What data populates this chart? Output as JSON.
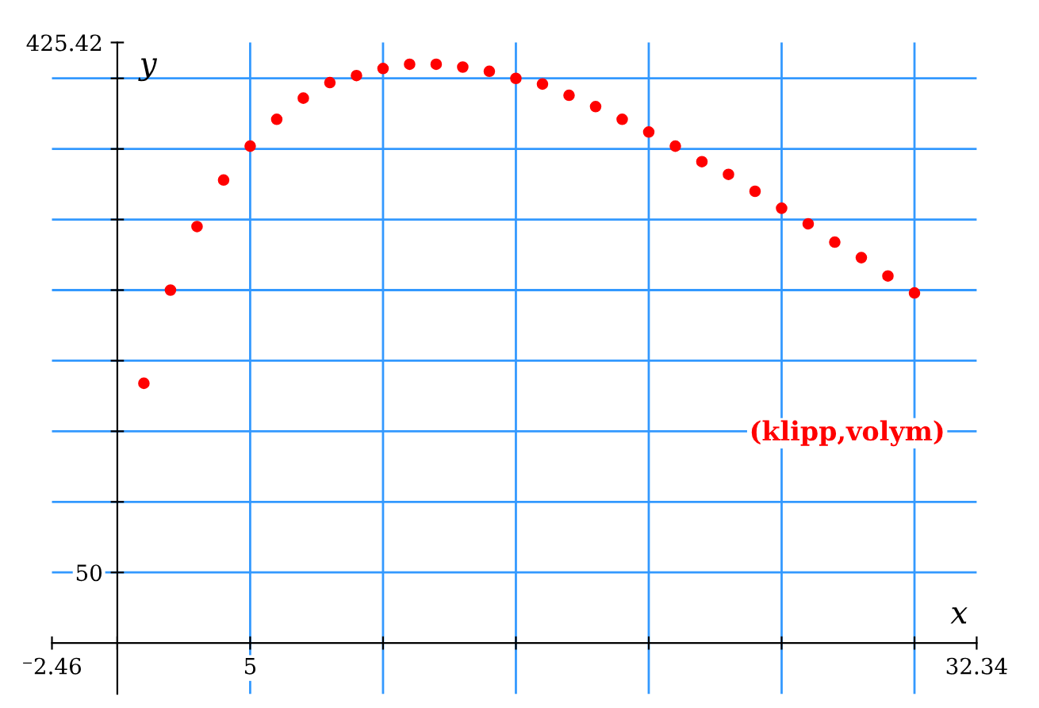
{
  "chart_data": {
    "type": "scatter",
    "xlabel": "x",
    "ylabel": "y",
    "x": [
      1,
      2,
      3,
      4,
      5,
      6,
      7,
      8,
      9,
      10,
      11,
      12,
      13,
      14,
      15,
      16,
      17,
      18,
      19,
      20,
      21,
      22,
      23,
      24,
      25,
      26,
      27,
      28,
      29,
      30
    ],
    "series": [
      {
        "name": "(klipp,volym)",
        "color": "#ff0000",
        "values": [
          184,
          250,
          295,
          328,
          352,
          371,
          386,
          397,
          402,
          407,
          410,
          410,
          408,
          405,
          400,
          396,
          388,
          380,
          371,
          362,
          352,
          341,
          332,
          320,
          308,
          297,
          284,
          273,
          260,
          248
        ]
      }
    ],
    "xlim": [
      -2.46,
      32.34
    ],
    "ylim": [
      -36,
      425.42
    ],
    "xticks": [
      {
        "value": -2.46,
        "label": "⁻2.46"
      },
      {
        "value": 0,
        "label": null
      },
      5,
      {
        "value": 10,
        "label": null
      },
      {
        "value": 15,
        "label": null
      },
      {
        "value": 20,
        "label": null
      },
      {
        "value": 25,
        "label": null
      },
      {
        "value": 30,
        "label": null
      },
      32.34
    ],
    "yticks": [
      50,
      {
        "value": 100,
        "label": null
      },
      {
        "value": 150,
        "label": null
      },
      {
        "value": 200,
        "label": null
      },
      {
        "value": 250,
        "label": null
      },
      {
        "value": 300,
        "label": null
      },
      {
        "value": 350,
        "label": null
      },
      {
        "value": 400,
        "label": null
      },
      425.42
    ],
    "grid": true,
    "marker": "circle",
    "legend": "right"
  }
}
